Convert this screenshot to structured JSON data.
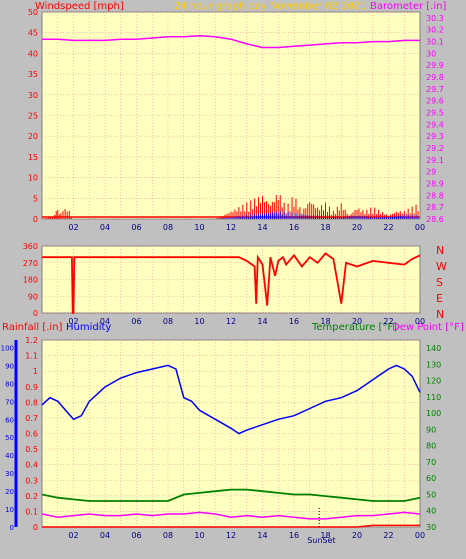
{
  "header": {
    "left_label": "Windspeed [mph]",
    "center_label": "24 hour graph day   November 02 2021",
    "right_label": "Barometer [.in]"
  },
  "colors": {
    "background": "#c0c0c0",
    "plot_bg": "#ffffc0",
    "wind": "#ff0000",
    "gust": "#0000ff",
    "barometer": "#ff00ff",
    "direction": "#ff0000",
    "humidity": "#0000ff",
    "temperature": "#008000",
    "dewpoint": "#ff00ff",
    "rain": "#ff0000",
    "title": "#ffcc00"
  },
  "chart_data": [
    {
      "type": "line",
      "name": "wind-barometer",
      "xlabel": "",
      "ylabel": "Windspeed [mph]",
      "x_ticks": [
        "02",
        "04",
        "06",
        "08",
        "10",
        "12",
        "14",
        "16",
        "18",
        "20",
        "22",
        "00"
      ],
      "y_left_ticks": [
        0,
        5,
        10,
        15,
        20,
        25,
        30,
        35,
        40,
        45,
        50
      ],
      "y_left_lim": [
        0,
        50
      ],
      "y_right_ticks": [
        "28.6",
        "28.7",
        "28.8",
        "28.9",
        "29",
        "29.1",
        "29.2",
        "29.3",
        "29.4",
        "29.5",
        "29.6",
        "29.7",
        "29.8",
        "29.9",
        "30",
        "30.1",
        "30.2",
        "30.3"
      ],
      "y_right_lim": [
        28.6,
        30.35
      ],
      "series": [
        {
          "name": "Barometer [.in]",
          "axis": "right",
          "x": [
            0,
            1,
            2,
            3,
            4,
            5,
            6,
            7,
            8,
            9,
            10,
            11,
            12,
            13,
            14,
            15,
            16,
            17,
            18,
            19,
            20,
            21,
            22,
            23,
            24
          ],
          "values": [
            30.12,
            30.12,
            30.11,
            30.11,
            30.11,
            30.12,
            30.12,
            30.13,
            30.14,
            30.14,
            30.15,
            30.14,
            30.12,
            30.08,
            30.05,
            30.05,
            30.06,
            30.07,
            30.08,
            30.09,
            30.09,
            30.1,
            30.1,
            30.11,
            30.11
          ]
        },
        {
          "name": "Windspeed",
          "axis": "left",
          "x": [
            0,
            0.8,
            1,
            1.2,
            1.6,
            2,
            3,
            4,
            5,
            6,
            7,
            8,
            9,
            10,
            11,
            11.5,
            12,
            12.5,
            13,
            13.5,
            14,
            14.5,
            15,
            15.5,
            16,
            16.5,
            17,
            17.5,
            18,
            18.5,
            19,
            19.5,
            20,
            20.5,
            21,
            21.5,
            22,
            22.5,
            23,
            23.5,
            24
          ],
          "values": [
            0,
            1,
            3,
            2,
            3,
            0,
            0,
            0,
            0,
            0,
            0,
            0,
            0,
            0,
            0,
            1,
            2,
            3,
            4,
            5,
            6,
            4,
            7,
            3,
            6,
            2,
            5,
            3,
            4,
            2,
            4,
            1,
            3,
            2,
            3,
            2,
            1,
            2,
            2,
            3,
            4
          ]
        },
        {
          "name": "Gust",
          "axis": "left",
          "x": [
            0,
            1,
            2,
            11,
            12,
            13,
            14,
            15,
            16,
            17,
            18,
            19,
            20,
            21,
            22,
            23,
            24
          ],
          "values": [
            0,
            0,
            0,
            0,
            0.5,
            1,
            1.5,
            2,
            1.5,
            1,
            1,
            0.5,
            1,
            0.5,
            0.5,
            1,
            1
          ]
        }
      ]
    },
    {
      "type": "line",
      "name": "wind-direction",
      "ylabel": "",
      "y_left_ticks": [
        0,
        90,
        180,
        270,
        360
      ],
      "y_left_lim": [
        0,
        360
      ],
      "right_labels": [
        "N",
        "W",
        "S",
        "E",
        "N"
      ],
      "series": [
        {
          "name": "Direction",
          "x": [
            0,
            1.9,
            1.95,
            2.0,
            2.05,
            12.5,
            13,
            13.5,
            13.6,
            13.7,
            14,
            14.3,
            14.5,
            14.8,
            15,
            15.3,
            15.5,
            16,
            16.5,
            17,
            17.5,
            18,
            18.5,
            19,
            19.3,
            20,
            21,
            22,
            23,
            23.5,
            24
          ],
          "values": [
            300,
            300,
            0,
            0,
            300,
            300,
            280,
            250,
            50,
            300,
            260,
            40,
            300,
            200,
            280,
            300,
            260,
            310,
            250,
            300,
            270,
            320,
            290,
            50,
            270,
            250,
            280,
            270,
            260,
            290,
            310
          ]
        }
      ]
    },
    {
      "type": "line",
      "name": "humidity-temp-rain",
      "y_left_ticks": [
        "0",
        "0.1",
        "0.2",
        "0.3",
        "0.4",
        "0.5",
        "0.6",
        "0.7",
        "0.8",
        "0.9",
        "1",
        "1.1",
        "1.2"
      ],
      "y_left_lim": [
        0,
        1.2
      ],
      "y_humidity_ticks": [
        0,
        10,
        20,
        30,
        40,
        50,
        60,
        70,
        80,
        90,
        100
      ],
      "y_right_ticks": [
        30,
        40,
        50,
        60,
        70,
        80,
        90,
        100,
        110,
        120,
        130,
        140
      ],
      "y_right_lim": [
        30,
        145
      ],
      "legend_left": [
        "Rainfall [.in]",
        "Humidity"
      ],
      "legend_right": [
        "Temperature [°F]",
        "Dew Point [°F]"
      ],
      "annotations": [
        "SunSet"
      ],
      "series": [
        {
          "name": "Humidity",
          "axis": "humidity",
          "x": [
            0,
            0.5,
            1,
            1.5,
            2,
            2.5,
            3,
            4,
            5,
            6,
            7,
            8,
            8.5,
            9,
            9.5,
            10,
            11,
            12,
            12.5,
            13,
            14,
            15,
            16,
            17,
            18,
            19,
            20,
            21,
            22,
            22.5,
            23,
            23.5,
            24
          ],
          "values": [
            68,
            72,
            70,
            65,
            60,
            62,
            70,
            78,
            83,
            86,
            88,
            90,
            88,
            72,
            70,
            65,
            60,
            55,
            52,
            54,
            57,
            60,
            62,
            66,
            70,
            72,
            76,
            82,
            88,
            90,
            88,
            84,
            75
          ]
        },
        {
          "name": "Temperature [°F]",
          "axis": "right",
          "x": [
            0,
            1,
            2,
            3,
            4,
            5,
            6,
            7,
            8,
            9,
            10,
            11,
            12,
            13,
            14,
            15,
            16,
            17,
            18,
            19,
            20,
            21,
            22,
            23,
            24
          ],
          "values": [
            50,
            48,
            47,
            46,
            46,
            46,
            46,
            46,
            46,
            50,
            51,
            52,
            53,
            53,
            52,
            51,
            50,
            50,
            49,
            48,
            47,
            46,
            46,
            46,
            48
          ]
        },
        {
          "name": "Dew Point [°F]",
          "axis": "right",
          "x": [
            0,
            1,
            2,
            3,
            4,
            5,
            6,
            7,
            8,
            9,
            10,
            11,
            12,
            13,
            14,
            15,
            16,
            17,
            18,
            19,
            20,
            21,
            22,
            23,
            24
          ],
          "values": [
            38,
            36,
            37,
            38,
            37,
            37,
            38,
            37,
            38,
            38,
            39,
            38,
            36,
            37,
            36,
            37,
            36,
            35,
            35,
            36,
            37,
            37,
            38,
            39,
            38
          ]
        },
        {
          "name": "Rainfall [.in]",
          "axis": "left",
          "x": [
            0,
            20,
            21,
            22,
            23,
            24
          ],
          "values": [
            0,
            0,
            0.01,
            0.01,
            0.01,
            0.01
          ]
        }
      ]
    }
  ]
}
